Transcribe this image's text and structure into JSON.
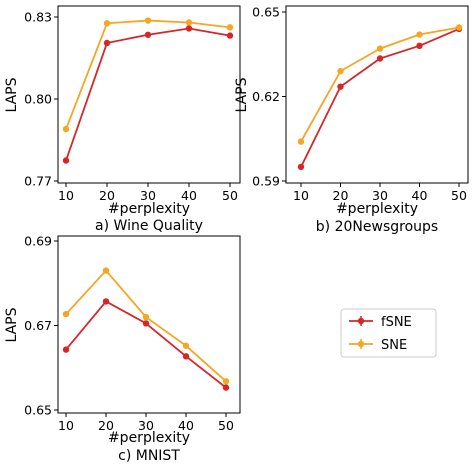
{
  "colors": {
    "fSNE": "#d62728",
    "SNE": "#f5a623",
    "axis": "#000000",
    "legend_border": "#cccccc"
  },
  "legend": {
    "entries": [
      "fSNE",
      "SNE"
    ]
  },
  "chart_data": [
    {
      "type": "line",
      "caption": "a) Wine Quality",
      "xlabel": "#perplexity",
      "ylabel": "LAPS",
      "x": [
        10,
        20,
        30,
        40,
        50
      ],
      "xticks": [
        "10",
        "20",
        "30",
        "40",
        "50"
      ],
      "yticks": [
        0.77,
        0.8,
        0.83
      ],
      "ytick_labels": [
        "0.77",
        "0.80",
        "0.83"
      ],
      "ylim": [
        0.77,
        0.83
      ],
      "series": [
        {
          "name": "fSNE",
          "values": [
            0.7775,
            0.8205,
            0.8235,
            0.8258,
            0.8232
          ]
        },
        {
          "name": "SNE",
          "values": [
            0.789,
            0.8277,
            0.8287,
            0.828,
            0.8262
          ]
        }
      ]
    },
    {
      "type": "line",
      "caption": "b) 20Newsgroups",
      "xlabel": "#perplexity",
      "ylabel": "LAPS",
      "x": [
        10,
        20,
        30,
        40,
        50
      ],
      "xticks": [
        "10",
        "20",
        "30",
        "40",
        "50"
      ],
      "yticks": [
        0.59,
        0.62,
        0.65
      ],
      "ytick_labels": [
        "0.59",
        "0.62",
        "0.65"
      ],
      "ylim": [
        0.59,
        0.65
      ],
      "series": [
        {
          "name": "fSNE",
          "values": [
            0.595,
            0.6235,
            0.6335,
            0.638,
            0.644
          ]
        },
        {
          "name": "SNE",
          "values": [
            0.604,
            0.629,
            0.637,
            0.642,
            0.6445
          ]
        }
      ]
    },
    {
      "type": "line",
      "caption": "c) MNIST",
      "xlabel": "#perplexity",
      "ylabel": "LAPS",
      "x": [
        10,
        20,
        30,
        40,
        50
      ],
      "xticks": [
        "10",
        "20",
        "30",
        "40",
        "50"
      ],
      "yticks": [
        0.65,
        0.67,
        0.69
      ],
      "ytick_labels": [
        "0.65",
        "0.67",
        "0.69"
      ],
      "ylim": [
        0.65,
        0.69
      ],
      "series": [
        {
          "name": "fSNE",
          "values": [
            0.6643,
            0.6757,
            0.6705,
            0.6627,
            0.6553
          ]
        },
        {
          "name": "SNE",
          "values": [
            0.6727,
            0.683,
            0.672,
            0.6652,
            0.6568
          ]
        }
      ]
    }
  ]
}
